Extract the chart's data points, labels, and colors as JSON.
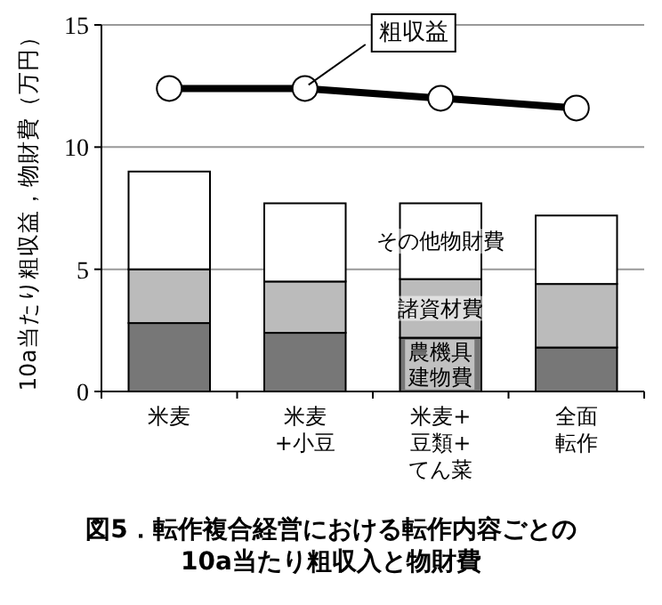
{
  "chart_data": {
    "type": "bar",
    "stacked": true,
    "title": "図5．転作複合経営における転作内容ごとの\n10a当たり粗収入と物財費",
    "ylabel": "10a当たり粗収益，物財費（万円）",
    "categories": [
      "米麦",
      "米麦\n+小豆",
      "米麦+\n豆類+\nてん菜",
      "全面転作"
    ],
    "series": [
      {
        "name": "農機具建物費",
        "color": "#777777",
        "values": [
          2.8,
          2.4,
          2.2,
          1.8
        ]
      },
      {
        "name": "諸資材費",
        "color": "#bbbbbb",
        "values": [
          2.2,
          2.1,
          2.4,
          2.6
        ]
      },
      {
        "name": "その他物財費",
        "color": "#ffffff",
        "values": [
          4.0,
          3.2,
          3.1,
          2.8
        ]
      },
      {
        "name": "粗収益",
        "type": "line",
        "color": "#000000",
        "marker": "circle",
        "values": [
          12.4,
          12.4,
          12.0,
          11.6
        ]
      }
    ],
    "ylim": [
      0,
      15
    ],
    "yticks": [
      0,
      5,
      10,
      15
    ],
    "grid": "y",
    "legend": false
  }
}
